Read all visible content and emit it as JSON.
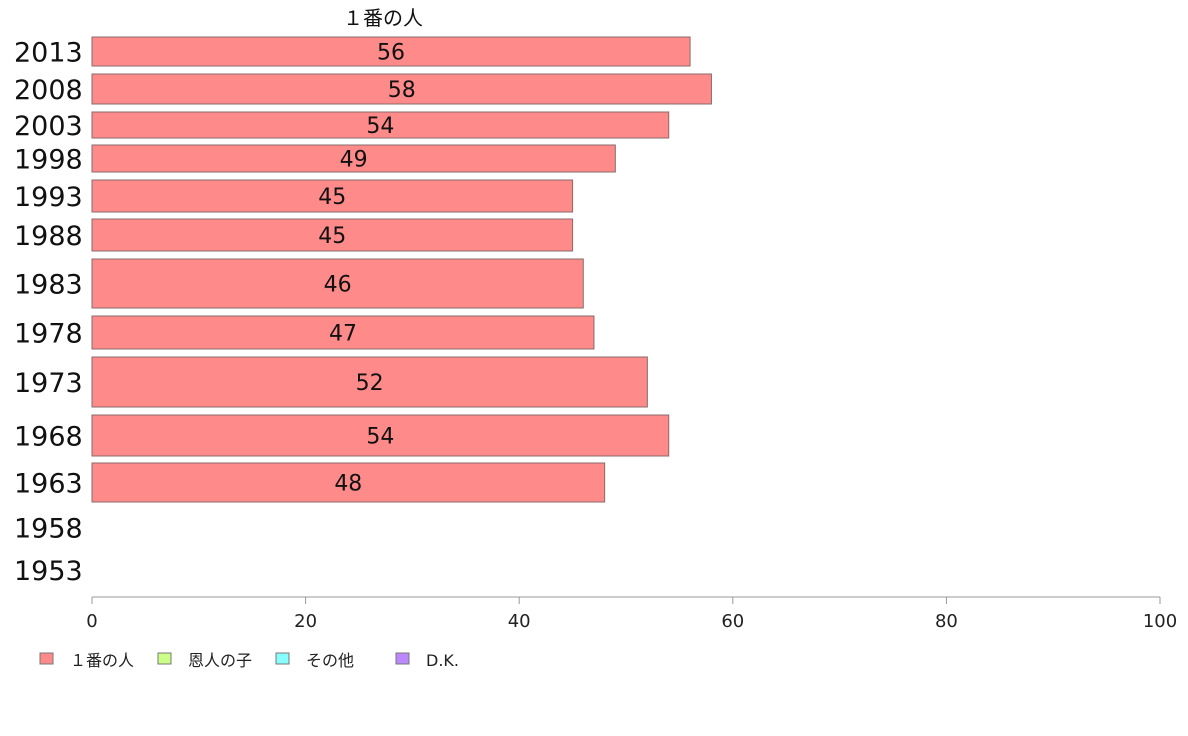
{
  "chart_data": {
    "type": "bar",
    "orientation": "horizontal",
    "stacked": true,
    "categories": [
      "2013",
      "2008",
      "2003",
      "1998",
      "1993",
      "1988",
      "1983",
      "1978",
      "1973",
      "1968",
      "1963",
      "1958",
      "1953"
    ],
    "series": [
      {
        "name": "１番の人",
        "color": "#ff8a8a",
        "values": [
          56,
          58,
          54,
          49,
          45,
          45,
          46,
          47,
          52,
          54,
          48,
          null,
          null
        ]
      },
      {
        "name": "恩人の子",
        "color": "#ccff88",
        "values": [
          null,
          null,
          null,
          null,
          null,
          null,
          null,
          null,
          null,
          null,
          null,
          null,
          null
        ]
      },
      {
        "name": "その他",
        "color": "#88ffff",
        "values": [
          null,
          null,
          null,
          null,
          null,
          null,
          null,
          null,
          null,
          null,
          null,
          null,
          null
        ]
      },
      {
        "name": "D.K.",
        "color": "#bb88ff",
        "values": [
          null,
          null,
          null,
          null,
          null,
          null,
          null,
          null,
          null,
          null,
          null,
          null,
          null
        ]
      }
    ],
    "data_labels": [
      "56",
      "58",
      "54",
      "49",
      "45",
      "45",
      "46",
      "47",
      "52",
      "54",
      "48",
      "",
      ""
    ],
    "top_series_label": "１番の人",
    "xlim": [
      0,
      100
    ],
    "x_ticks": [
      "0",
      "20",
      "40",
      "60",
      "80",
      "100"
    ],
    "grid": false,
    "legend": "bottom-left"
  }
}
